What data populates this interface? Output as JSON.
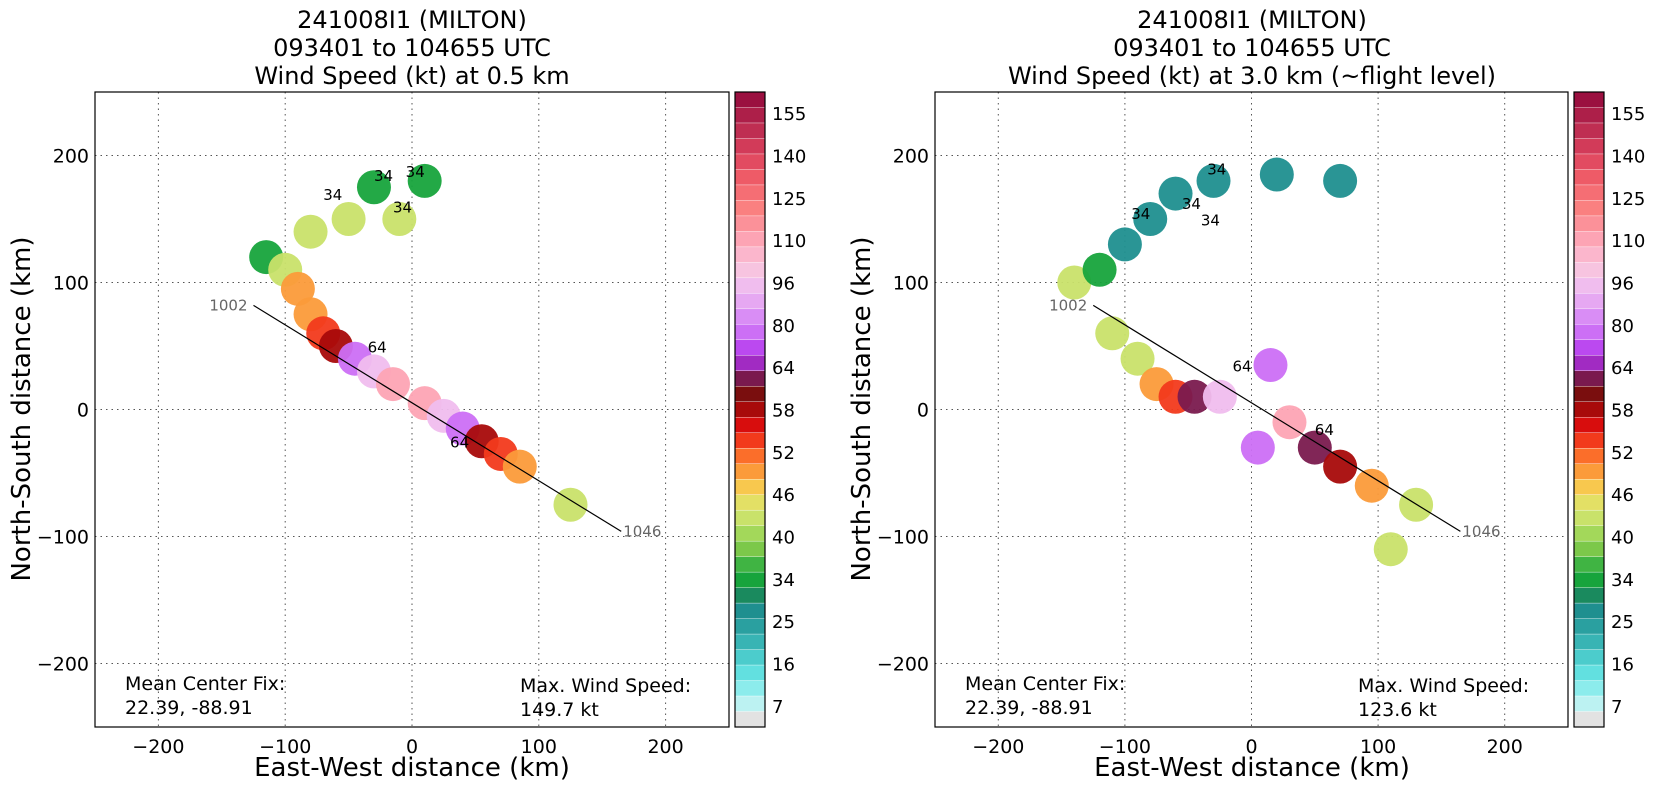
{
  "chart_data": [
    {
      "type": "heatmap",
      "title_lines": [
        "241008I1 (MILTON)",
        "093401 to 104655 UTC",
        "Wind Speed (kt) at 0.5 km"
      ],
      "xlabel": "East-West distance (km)",
      "ylabel": "North-South distance (km)",
      "xlim": [
        -250,
        250
      ],
      "ylim": [
        -250,
        250
      ],
      "x_ticks": [
        -200,
        -100,
        0,
        100,
        200
      ],
      "x_tick_labels": [
        "−200",
        "−100",
        "0",
        "100",
        "200"
      ],
      "y_ticks": [
        200,
        100,
        0,
        -100,
        -200
      ],
      "y_tick_labels": [
        "200",
        "100",
        "0",
        "−100",
        "−200"
      ],
      "grid": true,
      "colorbar_tick_labels": [
        "155",
        "140",
        "125",
        "110",
        "96",
        "80",
        "64",
        "58",
        "52",
        "46",
        "40",
        "34",
        "25",
        "16",
        "7"
      ],
      "track": {
        "start_label": "1002",
        "end_label": "1046",
        "start": [
          -125,
          82
        ],
        "end": [
          165,
          -96
        ]
      },
      "contour_labels": [
        "34",
        "34",
        "34",
        "34",
        "64",
        "64"
      ],
      "mean_center_label": "Mean Center Fix:",
      "mean_center_value": "22.39, -88.91",
      "max_wind_label": "Max. Wind Speed:",
      "max_wind_value": "149.7 kt",
      "swath": [
        {
          "x": -115,
          "y": 120,
          "v": 34
        },
        {
          "x": -100,
          "y": 110,
          "v": 42
        },
        {
          "x": -90,
          "y": 95,
          "v": 46
        },
        {
          "x": -80,
          "y": 75,
          "v": 50
        },
        {
          "x": -70,
          "y": 60,
          "v": 56
        },
        {
          "x": -60,
          "y": 50,
          "v": 60
        },
        {
          "x": -45,
          "y": 40,
          "v": 80
        },
        {
          "x": -30,
          "y": 30,
          "v": 96
        },
        {
          "x": -15,
          "y": 20,
          "v": 110
        },
        {
          "x": 10,
          "y": 5,
          "v": 110
        },
        {
          "x": 25,
          "y": -5,
          "v": 96
        },
        {
          "x": 40,
          "y": -15,
          "v": 80
        },
        {
          "x": 55,
          "y": -25,
          "v": 60
        },
        {
          "x": 70,
          "y": -35,
          "v": 52
        },
        {
          "x": 85,
          "y": -45,
          "v": 46
        },
        {
          "x": 125,
          "y": -75,
          "v": 42
        },
        {
          "x": -30,
          "y": 175,
          "v": 34
        },
        {
          "x": 10,
          "y": 180,
          "v": 34
        },
        {
          "x": -50,
          "y": 150,
          "v": 40
        },
        {
          "x": -10,
          "y": 150,
          "v": 40
        },
        {
          "x": -80,
          "y": 140,
          "v": 40
        }
      ]
    },
    {
      "type": "heatmap",
      "title_lines": [
        "241008I1 (MILTON)",
        "093401 to 104655 UTC",
        "Wind Speed (kt) at 3.0 km (~flight level)"
      ],
      "xlabel": "East-West distance (km)",
      "ylabel": "North-South distance (km)",
      "xlim": [
        -250,
        250
      ],
      "ylim": [
        -250,
        250
      ],
      "x_ticks": [
        -200,
        -100,
        0,
        100,
        200
      ],
      "x_tick_labels": [
        "−200",
        "−100",
        "0",
        "100",
        "200"
      ],
      "y_ticks": [
        200,
        100,
        0,
        -100,
        -200
      ],
      "y_tick_labels": [
        "200",
        "100",
        "0",
        "−100",
        "−200"
      ],
      "grid": true,
      "colorbar_tick_labels": [
        "155",
        "140",
        "125",
        "110",
        "96",
        "80",
        "64",
        "58",
        "52",
        "46",
        "40",
        "34",
        "25",
        "16",
        "7"
      ],
      "track": {
        "start_label": "1002",
        "end_label": "1046",
        "start": [
          -125,
          82
        ],
        "end": [
          165,
          -96
        ]
      },
      "contour_labels": [
        "34",
        "34",
        "34",
        "34",
        "64",
        "64"
      ],
      "mean_center_label": "Mean Center Fix:",
      "mean_center_value": "22.39, -88.91",
      "max_wind_label": "Max. Wind Speed:",
      "max_wind_value": "123.6 kt",
      "swath": [
        {
          "x": -140,
          "y": 100,
          "v": 40
        },
        {
          "x": -120,
          "y": 110,
          "v": 34
        },
        {
          "x": -100,
          "y": 130,
          "v": 25
        },
        {
          "x": -80,
          "y": 150,
          "v": 25
        },
        {
          "x": -60,
          "y": 170,
          "v": 25
        },
        {
          "x": -30,
          "y": 180,
          "v": 25
        },
        {
          "x": 20,
          "y": 185,
          "v": 25
        },
        {
          "x": 70,
          "y": 180,
          "v": 25
        },
        {
          "x": -110,
          "y": 60,
          "v": 40
        },
        {
          "x": -90,
          "y": 40,
          "v": 40
        },
        {
          "x": -75,
          "y": 20,
          "v": 46
        },
        {
          "x": -60,
          "y": 10,
          "v": 52
        },
        {
          "x": -45,
          "y": 10,
          "v": 64
        },
        {
          "x": -25,
          "y": 10,
          "v": 96
        },
        {
          "x": 15,
          "y": 35,
          "v": 80
        },
        {
          "x": 30,
          "y": -10,
          "v": 110
        },
        {
          "x": 5,
          "y": -30,
          "v": 80
        },
        {
          "x": 50,
          "y": -30,
          "v": 64
        },
        {
          "x": 70,
          "y": -45,
          "v": 58
        },
        {
          "x": 95,
          "y": -60,
          "v": 46
        },
        {
          "x": 130,
          "y": -75,
          "v": 40
        },
        {
          "x": 110,
          "y": -110,
          "v": 40
        }
      ]
    }
  ]
}
